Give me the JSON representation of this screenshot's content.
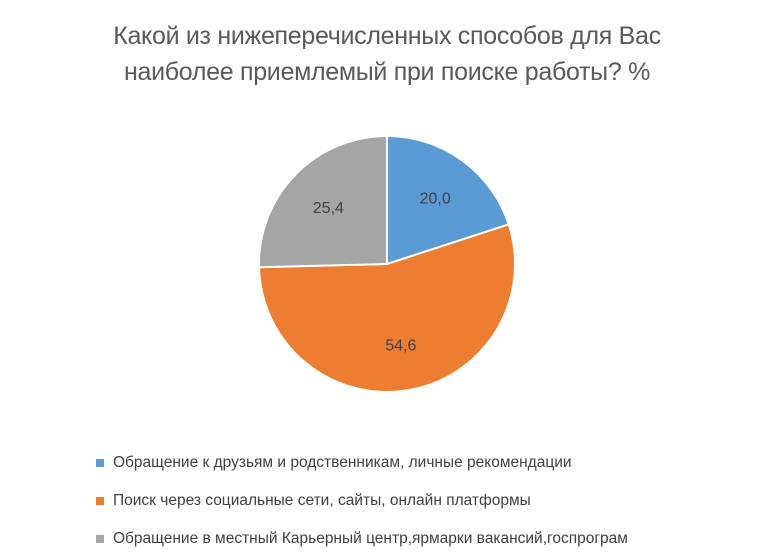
{
  "chart_data": {
    "type": "pie",
    "title_lines": [
      "Какой из нижеперечисленных способов для Вас",
      "наиболее приемлемый при поиске работы? %"
    ],
    "categories": [
      "Обращение к друзьям и родственникам, личные рекомендации",
      "Поиск через социальные сети, сайты, онлайн платформы",
      "Обращение в местный Карьерный центр,ярмарки вакансий,госпрограм"
    ],
    "values": [
      20.0,
      54.6,
      25.4
    ],
    "value_labels": [
      "20,0",
      "54,6",
      "25,4"
    ],
    "colors": [
      "#5b9bd5",
      "#ed7d31",
      "#a5a5a5"
    ],
    "legend_position": "bottom"
  }
}
